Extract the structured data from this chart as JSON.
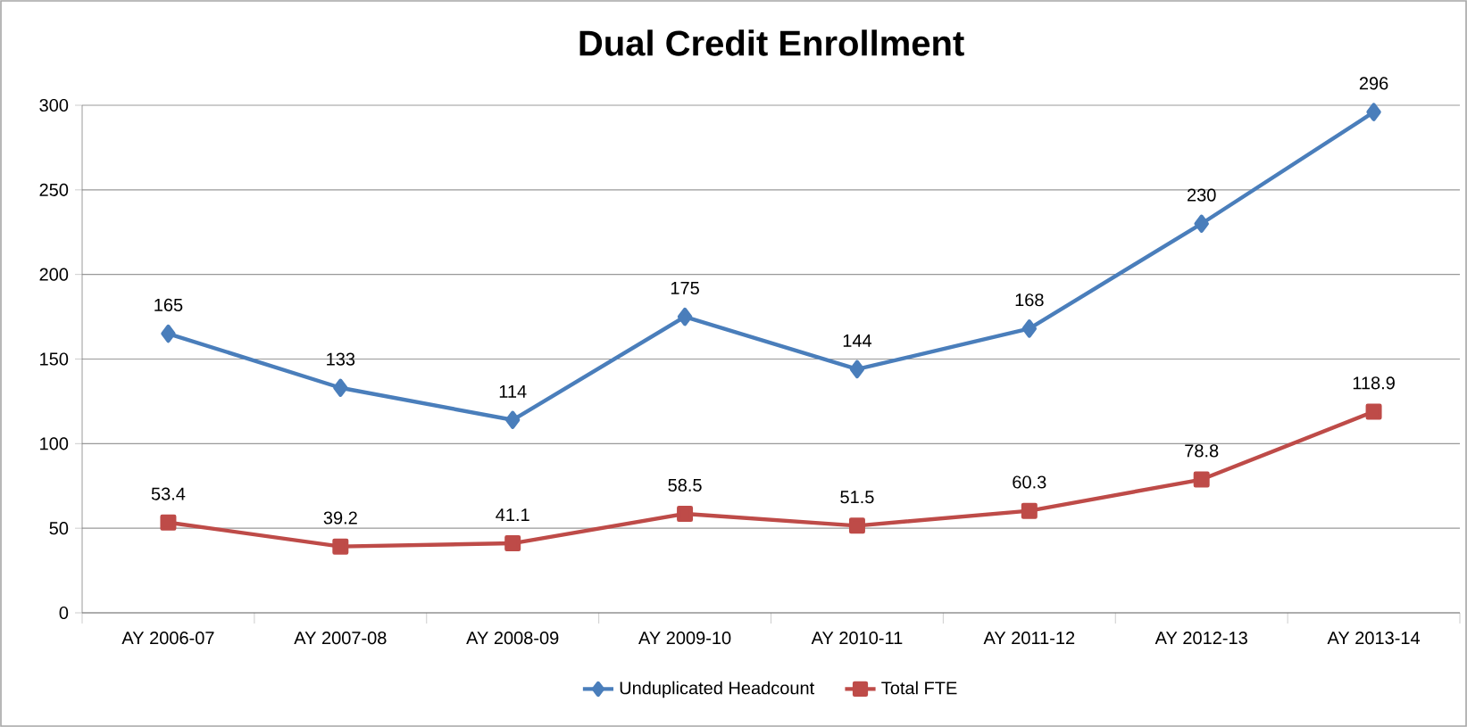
{
  "chart_data": {
    "type": "line",
    "title": "Dual Credit Enrollment",
    "categories": [
      "AY 2006-07",
      "AY 2007-08",
      "AY 2008-09",
      "AY 2009-10",
      "AY 2010-11",
      "AY 2011-12",
      "AY 2012-13",
      "AY 2013-14"
    ],
    "series": [
      {
        "name": "Unduplicated Headcount",
        "color": "#4a7ebb",
        "marker": "diamond",
        "values": [
          165,
          133,
          114,
          175,
          144,
          168,
          230,
          296
        ]
      },
      {
        "name": "Total FTE",
        "color": "#be4b48",
        "marker": "square",
        "values": [
          53.4,
          39.2,
          41.1,
          58.5,
          51.5,
          60.3,
          78.8,
          118.9
        ]
      }
    ],
    "ylim": [
      0,
      300
    ],
    "yticks": [
      0,
      50,
      100,
      150,
      200,
      250,
      300
    ],
    "grid": "y",
    "legend": "bottom",
    "data_labels": true,
    "line_style": "solid"
  }
}
